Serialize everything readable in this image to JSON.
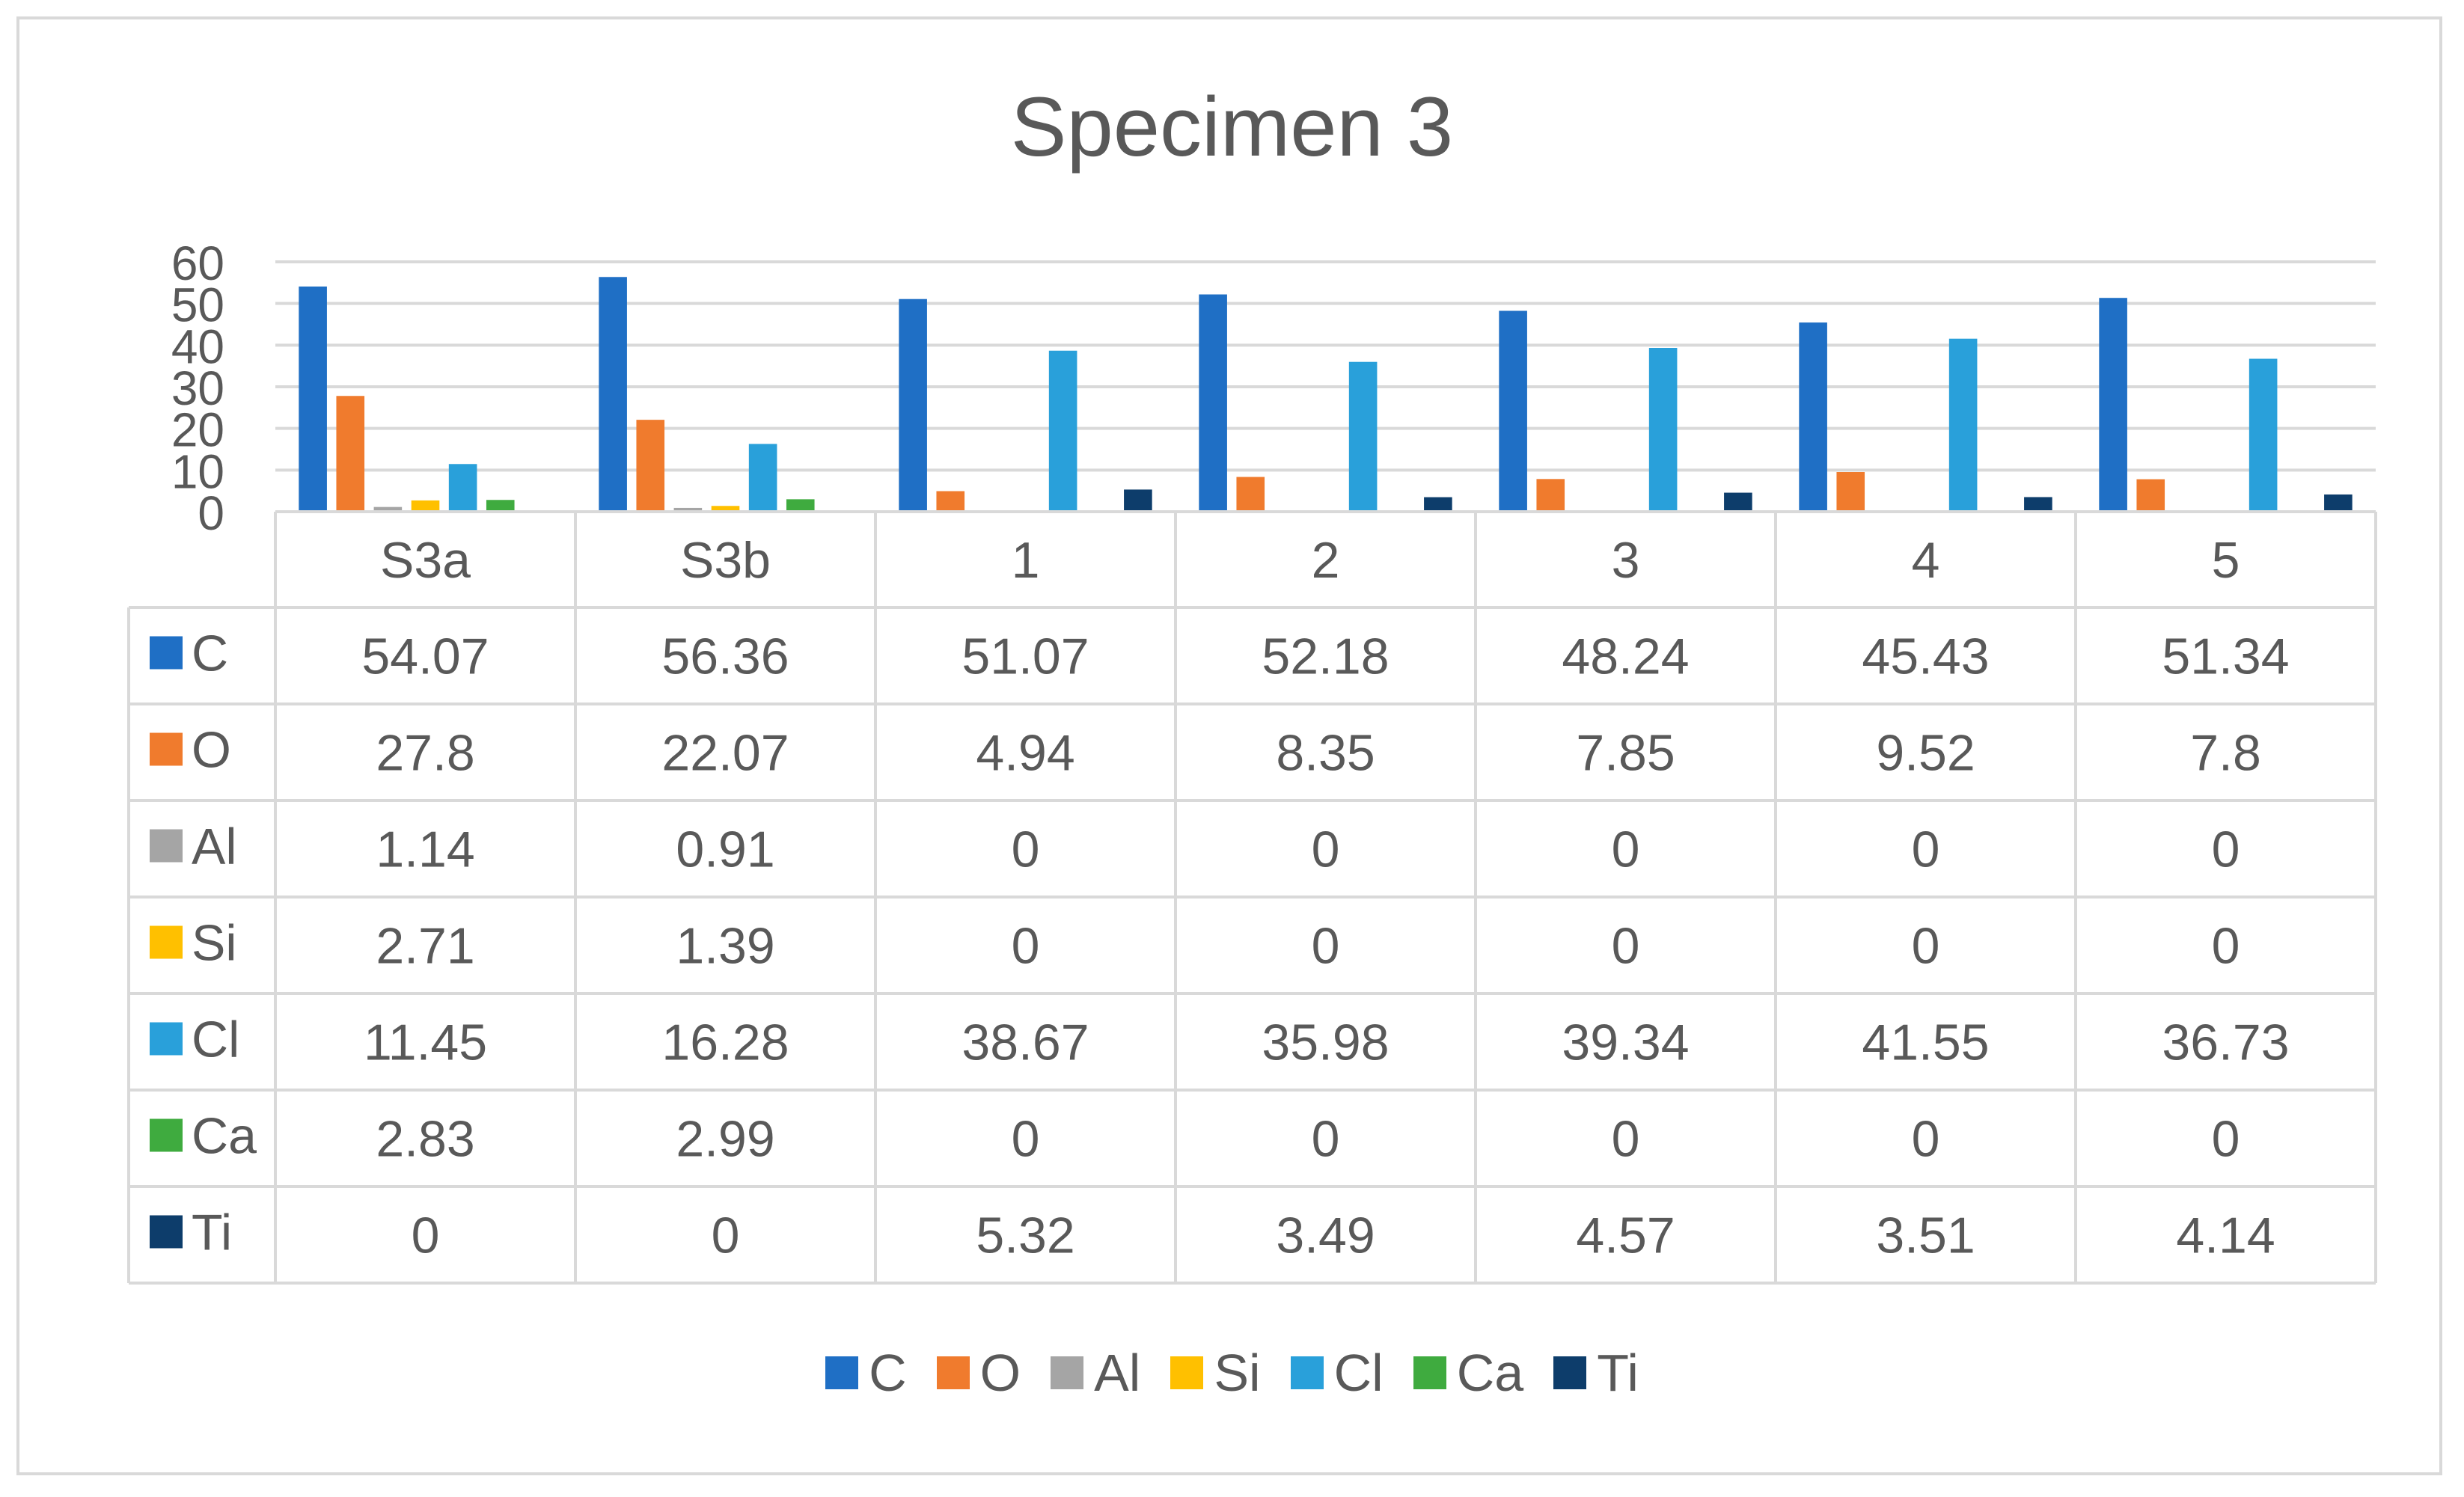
{
  "chart_data": {
    "type": "bar",
    "title": "Specimen 3",
    "categories": [
      "S3a",
      "S3b",
      "1",
      "2",
      "3",
      "4",
      "5"
    ],
    "series": [
      {
        "name": "C",
        "color": "#1f6fc5",
        "values": [
          54.07,
          56.36,
          51.07,
          52.18,
          48.24,
          45.43,
          51.34
        ],
        "labels": [
          "54.07",
          "56.36",
          "51.07",
          "52.18",
          "48.24",
          "45.43",
          "51.34"
        ]
      },
      {
        "name": "O",
        "color": "#f07b2d",
        "values": [
          27.8,
          22.07,
          4.94,
          8.35,
          7.85,
          9.52,
          7.8
        ],
        "labels": [
          "27.8",
          "22.07",
          "4.94",
          "8.35",
          "7.85",
          "9.52",
          "7.8"
        ]
      },
      {
        "name": "Al",
        "color": "#a5a5a5",
        "values": [
          1.14,
          0.91,
          0,
          0,
          0,
          0,
          0
        ],
        "labels": [
          "1.14",
          "0.91",
          "0",
          "0",
          "0",
          "0",
          "0"
        ]
      },
      {
        "name": "Si",
        "color": "#ffc000",
        "values": [
          2.71,
          1.39,
          0,
          0,
          0,
          0,
          0
        ],
        "labels": [
          "2.71",
          "1.39",
          "0",
          "0",
          "0",
          "0",
          "0"
        ]
      },
      {
        "name": "Cl",
        "color": "#29a0da",
        "values": [
          11.45,
          16.28,
          38.67,
          35.98,
          39.34,
          41.55,
          36.73
        ],
        "labels": [
          "11.45",
          "16.28",
          "38.67",
          "35.98",
          "39.34",
          "41.55",
          "36.73"
        ]
      },
      {
        "name": "Ca",
        "color": "#3fab3f",
        "values": [
          2.83,
          2.99,
          0,
          0,
          0,
          0,
          0
        ],
        "labels": [
          "2.83",
          "2.99",
          "0",
          "0",
          "0",
          "0",
          "0"
        ]
      },
      {
        "name": "Ti",
        "color": "#0d3d6b",
        "values": [
          0,
          0,
          5.32,
          3.49,
          4.57,
          3.51,
          4.14
        ],
        "labels": [
          "0",
          "0",
          "5.32",
          "3.49",
          "4.57",
          "3.51",
          "4.14"
        ]
      }
    ],
    "ylim": [
      0,
      60
    ],
    "yticks": [
      "0",
      "10",
      "20",
      "30",
      "40",
      "50",
      "60"
    ],
    "xlabel": "",
    "ylabel": "",
    "grid": true,
    "legend_position": "bottom",
    "has_data_table": true
  }
}
